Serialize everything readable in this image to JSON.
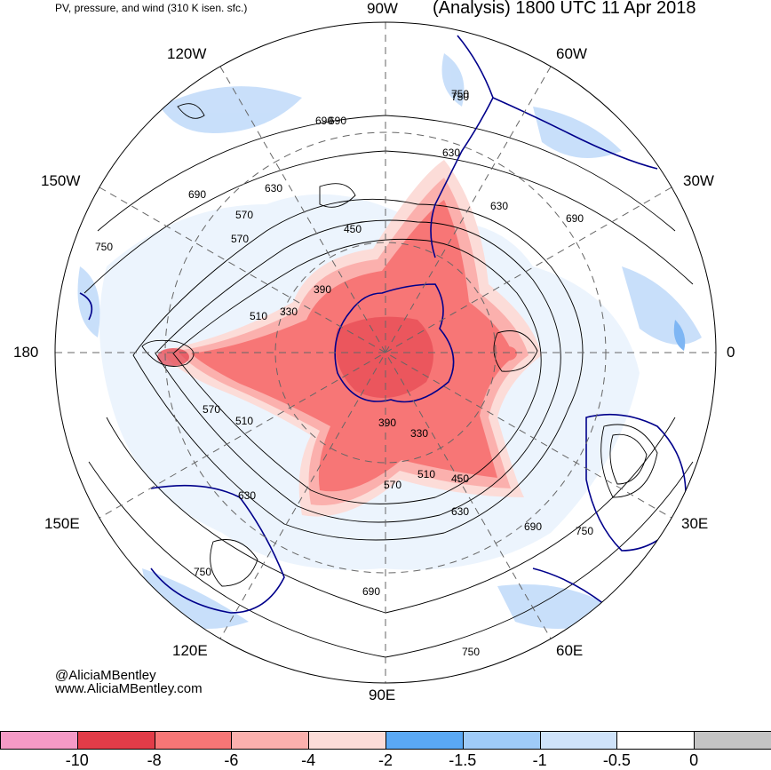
{
  "header": {
    "left_title": "PV, pressure, and wind (310 K isen. sfc.)",
    "right_title": "(Analysis) 1800 UTC 11 Apr 2018"
  },
  "longitude_labels": {
    "top": "90W",
    "upper_left": "120W",
    "upper_right": "60W",
    "left_upper": "150W",
    "right_upper": "30W",
    "left": "180",
    "right": "0",
    "left_lower": "150E",
    "right_lower": "30E",
    "lower_left": "120E",
    "lower_right": "60E",
    "bottom": "90E"
  },
  "contour_labels": [
    "690",
    "750",
    "570",
    "630",
    "690",
    "750",
    "630",
    "450",
    "570",
    "390",
    "510",
    "330",
    "690",
    "630",
    "750",
    "690",
    "570",
    "510",
    "390",
    "330",
    "510",
    "450",
    "570",
    "630",
    "690",
    "750",
    "630",
    "750",
    "690",
    "750"
  ],
  "credits": {
    "handle": "@AliciaMBentley",
    "website": "www.AliciaMBentley.com"
  },
  "colorbar": {
    "ticks": [
      "-10",
      "-8",
      "-6",
      "-4",
      "-2",
      "-1.5",
      "-1",
      "-0.5",
      "0"
    ],
    "colors": [
      "#f59ac6",
      "#e23c48",
      "#f77676",
      "#fbb0ad",
      "#fcdcd8",
      "#5aa8f4",
      "#9fcbf8",
      "#cfe3fa",
      "#ffffff",
      "#c4c4c4"
    ]
  },
  "map_colors": {
    "strong_negative_pv": "#ee6a6a",
    "negative_pv": "#f6a8a6",
    "weak_negative_pv": "#fbd6d2",
    "strong_positive_pv": "#7eb6f4",
    "positive_pv": "#c3dcfa",
    "coastline": "#00008b",
    "contour": "#000000"
  }
}
